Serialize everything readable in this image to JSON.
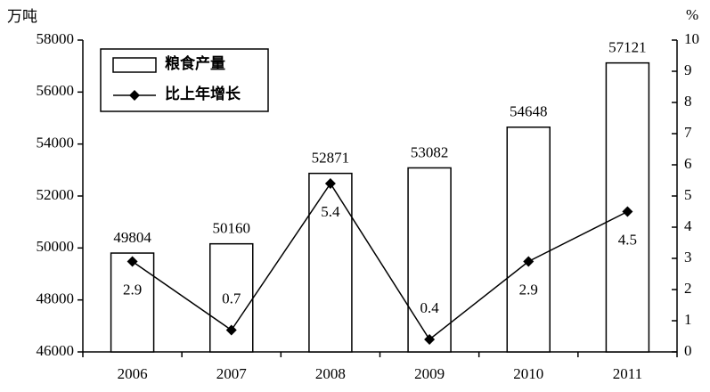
{
  "chart_data": {
    "type": "bar",
    "y_label": "万吨",
    "y2_label": "%",
    "categories": [
      "2006",
      "2007",
      "2008",
      "2009",
      "2010",
      "2011"
    ],
    "series": [
      {
        "name": "粮食产量",
        "type": "bar",
        "color": "#ffffff",
        "values": [
          49804,
          50160,
          52871,
          53082,
          54648,
          57121
        ]
      },
      {
        "name": "比上年增长",
        "type": "line",
        "axis": "y2",
        "color": "#000000",
        "values": [
          2.9,
          0.7,
          5.4,
          0.4,
          2.9,
          4.5
        ]
      }
    ],
    "ylim": [
      46000,
      58000
    ],
    "yticks": [
      46000,
      48000,
      50000,
      52000,
      54000,
      56000,
      58000
    ],
    "y2lim": [
      0,
      10
    ],
    "y2ticks": [
      0,
      1,
      2,
      3,
      4,
      5,
      6,
      7,
      8,
      9,
      10
    ],
    "legend": "upper left"
  }
}
